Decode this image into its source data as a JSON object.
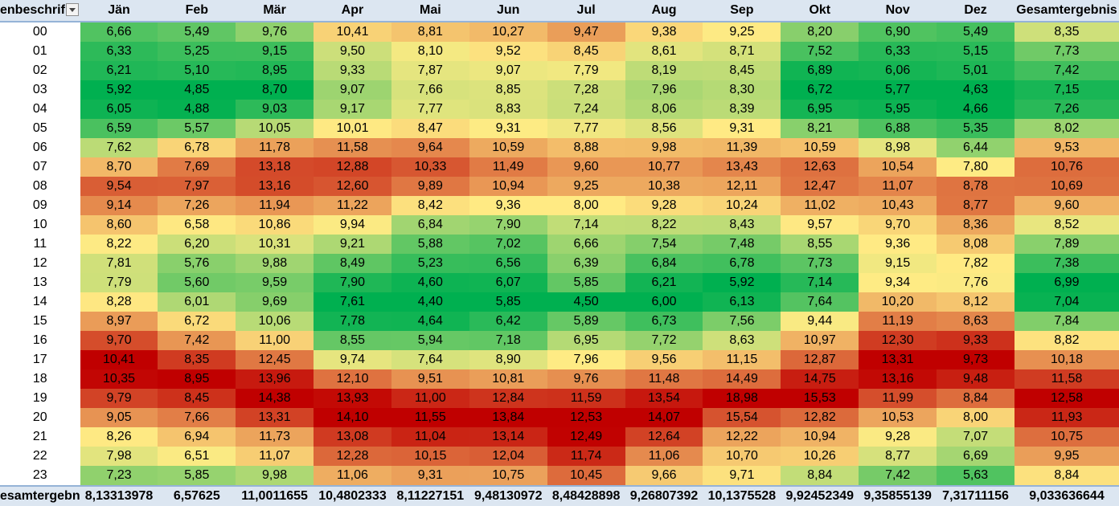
{
  "pivot": {
    "corner_label": "enbeschrif",
    "total_row_label": "esamtergebn",
    "columns": [
      "Jän",
      "Feb",
      "Mär",
      "Apr",
      "Mai",
      "Jun",
      "Jul",
      "Aug",
      "Sep",
      "Okt",
      "Nov",
      "Dez",
      "Gesamtergebnis"
    ],
    "rows": [
      {
        "hour": "00",
        "values": [
          "6,66",
          "5,49",
          "9,76",
          "10,41",
          "8,81",
          "10,27",
          "9,47",
          "9,38",
          "9,25",
          "8,20",
          "6,90",
          "5,49",
          "8,35"
        ]
      },
      {
        "hour": "01",
        "values": [
          "6,33",
          "5,25",
          "9,15",
          "9,50",
          "8,10",
          "9,52",
          "8,45",
          "8,61",
          "8,71",
          "7,52",
          "6,33",
          "5,15",
          "7,73"
        ]
      },
      {
        "hour": "02",
        "values": [
          "6,21",
          "5,10",
          "8,95",
          "9,33",
          "7,87",
          "9,07",
          "7,79",
          "8,19",
          "8,45",
          "6,89",
          "6,06",
          "5,01",
          "7,42"
        ]
      },
      {
        "hour": "03",
        "values": [
          "5,92",
          "4,85",
          "8,70",
          "9,07",
          "7,66",
          "8,85",
          "7,28",
          "7,96",
          "8,30",
          "6,72",
          "5,77",
          "4,63",
          "7,15"
        ]
      },
      {
        "hour": "04",
        "values": [
          "6,05",
          "4,88",
          "9,03",
          "9,17",
          "7,77",
          "8,83",
          "7,24",
          "8,06",
          "8,39",
          "6,95",
          "5,95",
          "4,66",
          "7,26"
        ]
      },
      {
        "hour": "05",
        "values": [
          "6,59",
          "5,57",
          "10,05",
          "10,01",
          "8,47",
          "9,31",
          "7,77",
          "8,56",
          "9,31",
          "8,21",
          "6,88",
          "5,35",
          "8,02"
        ]
      },
      {
        "hour": "06",
        "values": [
          "7,62",
          "6,78",
          "11,78",
          "11,58",
          "9,64",
          "10,59",
          "8,88",
          "9,98",
          "11,39",
          "10,59",
          "8,98",
          "6,44",
          "9,53"
        ]
      },
      {
        "hour": "07",
        "values": [
          "8,70",
          "7,69",
          "13,18",
          "12,88",
          "10,33",
          "11,49",
          "9,60",
          "10,77",
          "13,43",
          "12,63",
          "10,54",
          "7,80",
          "10,76"
        ]
      },
      {
        "hour": "08",
        "values": [
          "9,54",
          "7,97",
          "13,16",
          "12,60",
          "9,89",
          "10,94",
          "9,25",
          "10,38",
          "12,11",
          "12,47",
          "11,07",
          "8,78",
          "10,69"
        ]
      },
      {
        "hour": "09",
        "values": [
          "9,14",
          "7,26",
          "11,94",
          "11,22",
          "8,42",
          "9,36",
          "8,00",
          "9,28",
          "10,24",
          "11,02",
          "10,43",
          "8,77",
          "9,60"
        ]
      },
      {
        "hour": "10",
        "values": [
          "8,60",
          "6,58",
          "10,86",
          "9,94",
          "6,84",
          "7,90",
          "7,14",
          "8,22",
          "8,43",
          "9,57",
          "9,70",
          "8,36",
          "8,52"
        ]
      },
      {
        "hour": "11",
        "values": [
          "8,22",
          "6,20",
          "10,31",
          "9,21",
          "5,88",
          "7,02",
          "6,66",
          "7,54",
          "7,48",
          "8,55",
          "9,36",
          "8,08",
          "7,89"
        ]
      },
      {
        "hour": "12",
        "values": [
          "7,81",
          "5,76",
          "9,88",
          "8,49",
          "5,23",
          "6,56",
          "6,39",
          "6,84",
          "6,78",
          "7,73",
          "9,15",
          "7,82",
          "7,38"
        ]
      },
      {
        "hour": "13",
        "values": [
          "7,79",
          "5,60",
          "9,59",
          "7,90",
          "4,60",
          "6,07",
          "5,85",
          "6,21",
          "5,92",
          "7,14",
          "9,34",
          "7,76",
          "6,99"
        ]
      },
      {
        "hour": "14",
        "values": [
          "8,28",
          "6,01",
          "9,69",
          "7,61",
          "4,40",
          "5,85",
          "4,50",
          "6,00",
          "6,13",
          "7,64",
          "10,20",
          "8,12",
          "7,04"
        ]
      },
      {
        "hour": "15",
        "values": [
          "8,97",
          "6,72",
          "10,06",
          "7,78",
          "4,64",
          "6,42",
          "5,89",
          "6,73",
          "7,56",
          "9,44",
          "11,19",
          "8,63",
          "7,84"
        ]
      },
      {
        "hour": "16",
        "values": [
          "9,70",
          "7,42",
          "11,00",
          "8,55",
          "5,94",
          "7,18",
          "6,95",
          "7,72",
          "8,63",
          "10,97",
          "12,30",
          "9,33",
          "8,82"
        ]
      },
      {
        "hour": "17",
        "values": [
          "10,41",
          "8,35",
          "12,45",
          "9,74",
          "7,64",
          "8,90",
          "7,96",
          "9,56",
          "11,15",
          "12,87",
          "13,31",
          "9,73",
          "10,18"
        ]
      },
      {
        "hour": "18",
        "values": [
          "10,35",
          "8,95",
          "13,96",
          "12,10",
          "9,51",
          "10,81",
          "9,76",
          "11,48",
          "14,49",
          "14,75",
          "13,16",
          "9,48",
          "11,58"
        ]
      },
      {
        "hour": "19",
        "values": [
          "9,79",
          "8,45",
          "14,38",
          "13,93",
          "11,00",
          "12,84",
          "11,59",
          "13,54",
          "18,98",
          "15,53",
          "11,99",
          "8,84",
          "12,58"
        ]
      },
      {
        "hour": "20",
        "values": [
          "9,05",
          "7,66",
          "13,31",
          "14,10",
          "11,55",
          "13,84",
          "12,53",
          "14,07",
          "15,54",
          "12,82",
          "10,53",
          "8,00",
          "11,93"
        ]
      },
      {
        "hour": "21",
        "values": [
          "8,26",
          "6,94",
          "11,73",
          "13,08",
          "11,04",
          "13,14",
          "12,49",
          "12,64",
          "12,22",
          "10,94",
          "9,28",
          "7,07",
          "10,75"
        ]
      },
      {
        "hour": "22",
        "values": [
          "7,98",
          "6,51",
          "11,07",
          "12,28",
          "10,15",
          "12,04",
          "11,74",
          "11,06",
          "10,70",
          "10,26",
          "8,77",
          "6,69",
          "9,95"
        ]
      },
      {
        "hour": "23",
        "values": [
          "7,23",
          "5,85",
          "9,98",
          "11,06",
          "9,31",
          "10,75",
          "10,45",
          "9,66",
          "9,71",
          "8,84",
          "7,42",
          "5,63",
          "8,84"
        ]
      }
    ],
    "totals": [
      "8,13313978",
      "6,57625",
      "11,0011655",
      "10,4802333",
      "8,11227151",
      "9,48130972",
      "8,48428898",
      "9,26807392",
      "10,1375528",
      "9,92452349",
      "9,35855139",
      "7,31711156",
      "9,033636644"
    ]
  },
  "colors": {
    "scale_low": "#00b050",
    "scale_mid": "#ffeb84",
    "scale_high": "#c00000",
    "header_fill": "#dce6f1",
    "header_border": "#95b3d7"
  }
}
